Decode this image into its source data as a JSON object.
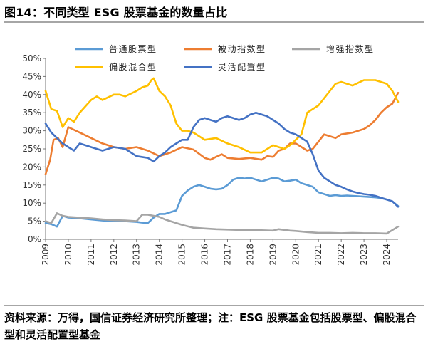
{
  "header": {
    "title": "图14：不同类型 ESG 股票基金的数量占比"
  },
  "footer": {
    "source": "资料来源：万得，国信证券经济研究所整理；注：ESG 股票基金包括股票型、偏股混合型和灵活配置型基金"
  },
  "chart_data": {
    "type": "line",
    "title": "图14：不同类型 ESG 股票基金的数量占比",
    "xlabel": "",
    "ylabel": "",
    "xlim": [
      2009.0,
      2024.5
    ],
    "ylim": [
      0,
      50
    ],
    "yticks": [
      0,
      5,
      10,
      15,
      20,
      25,
      30,
      35,
      40,
      45,
      50
    ],
    "ytick_labels": [
      "0%",
      "5%",
      "10%",
      "15%",
      "20%",
      "25%",
      "30%",
      "35%",
      "40%",
      "45%",
      "50%"
    ],
    "xticks": [
      2009,
      2010,
      2011,
      2012,
      2013,
      2014,
      2015,
      2016,
      2017,
      2018,
      2019,
      2020,
      2021,
      2022,
      2023,
      2024
    ],
    "xtick_labels": [
      "2009",
      "2010",
      "2011",
      "2012",
      "2013",
      "2014",
      "2015",
      "2016",
      "2017",
      "2018",
      "2019",
      "2020",
      "2021",
      "2022",
      "2023",
      "2024"
    ],
    "legend_position": "top",
    "grid": false,
    "series": [
      {
        "name": "普通股票型",
        "color": "#5b9bd5",
        "x": [
          2009.0,
          2009.25,
          2009.5,
          2009.75,
          2010.0,
          2010.5,
          2011.0,
          2011.5,
          2012.0,
          2012.5,
          2013.0,
          2013.25,
          2013.5,
          2013.75,
          2014.0,
          2014.25,
          2014.5,
          2014.75,
          2015.0,
          2015.25,
          2015.5,
          2015.75,
          2016.0,
          2016.25,
          2016.5,
          2016.75,
          2017.0,
          2017.25,
          2017.5,
          2017.75,
          2018.0,
          2018.25,
          2018.5,
          2018.75,
          2019.0,
          2019.25,
          2019.5,
          2019.75,
          2020.0,
          2020.25,
          2020.5,
          2020.75,
          2021.0,
          2021.25,
          2021.5,
          2021.75,
          2022.0,
          2022.25,
          2022.5,
          2022.75,
          2023.0,
          2023.25,
          2023.5,
          2023.75,
          2024.0,
          2024.25,
          2024.5
        ],
        "values": [
          4.5,
          4.2,
          3.5,
          6.5,
          6.0,
          5.8,
          5.5,
          5.2,
          5.0,
          5.0,
          4.8,
          4.6,
          4.5,
          6.0,
          7.0,
          7.0,
          7.5,
          8.0,
          12.0,
          13.5,
          14.5,
          15.0,
          14.5,
          14.0,
          13.8,
          14.0,
          15.0,
          16.5,
          17.0,
          16.8,
          17.0,
          16.5,
          16.0,
          16.5,
          17.0,
          16.8,
          16.0,
          16.2,
          16.5,
          15.5,
          15.0,
          14.5,
          13.0,
          12.5,
          12.0,
          12.2,
          12.0,
          12.1,
          12.0,
          11.9,
          11.8,
          11.7,
          11.6,
          11.4,
          11.0,
          10.5,
          9.2
        ]
      },
      {
        "name": "被动指数型",
        "color": "#ed7d31",
        "x": [
          2009.0,
          2009.2,
          2009.35,
          2009.55,
          2009.75,
          2010.0,
          2010.5,
          2011.0,
          2011.5,
          2012.0,
          2012.5,
          2013.0,
          2013.5,
          2014.0,
          2014.5,
          2015.0,
          2015.5,
          2016.0,
          2016.25,
          2016.5,
          2016.75,
          2017.0,
          2017.5,
          2018.0,
          2018.5,
          2018.75,
          2019.0,
          2019.25,
          2019.5,
          2019.75,
          2020.0,
          2020.5,
          2020.75,
          2021.0,
          2021.25,
          2021.5,
          2021.75,
          2022.0,
          2022.5,
          2022.75,
          2023.0,
          2023.25,
          2023.5,
          2023.75,
          2024.0,
          2024.25,
          2024.5
        ],
        "values": [
          18.0,
          22.0,
          27.5,
          28.0,
          25.5,
          31.0,
          29.5,
          28.0,
          26.5,
          25.5,
          25.0,
          25.5,
          24.5,
          23.0,
          24.0,
          25.5,
          24.8,
          22.5,
          22.0,
          22.8,
          23.5,
          22.5,
          22.2,
          22.5,
          22.0,
          23.0,
          22.8,
          24.5,
          25.0,
          26.5,
          26.5,
          24.5,
          25.0,
          27.0,
          29.0,
          28.5,
          28.0,
          29.0,
          29.5,
          30.0,
          30.5,
          31.5,
          33.0,
          35.0,
          36.5,
          37.5,
          40.5
        ]
      },
      {
        "name": "增强指数型",
        "color": "#a5a5a5",
        "x": [
          2009.0,
          2009.25,
          2009.5,
          2009.75,
          2010.0,
          2010.5,
          2011.0,
          2011.5,
          2012.0,
          2012.5,
          2013.0,
          2013.25,
          2013.5,
          2013.75,
          2014.0,
          2014.25,
          2014.5,
          2015.0,
          2015.5,
          2016.0,
          2016.5,
          2017.0,
          2017.5,
          2018.0,
          2018.5,
          2019.0,
          2019.25,
          2019.5,
          2019.75,
          2020.0,
          2020.5,
          2021.0,
          2021.5,
          2022.0,
          2022.5,
          2023.0,
          2023.5,
          2024.0,
          2024.5
        ],
        "values": [
          5.0,
          4.5,
          7.2,
          6.5,
          6.2,
          6.0,
          5.8,
          5.5,
          5.3,
          5.2,
          5.0,
          6.8,
          6.8,
          6.5,
          6.2,
          5.5,
          5.0,
          4.0,
          3.2,
          3.0,
          2.8,
          2.7,
          2.6,
          2.6,
          2.5,
          2.4,
          2.8,
          2.6,
          2.4,
          2.3,
          2.0,
          1.8,
          1.8,
          1.7,
          1.8,
          1.7,
          1.7,
          1.6,
          3.5
        ]
      },
      {
        "name": "偏股混合型",
        "color": "#ffc000",
        "x": [
          2009.0,
          2009.15,
          2009.25,
          2009.5,
          2009.75,
          2010.0,
          2010.25,
          2010.5,
          2011.0,
          2011.25,
          2011.5,
          2012.0,
          2012.25,
          2012.5,
          2013.0,
          2013.25,
          2013.5,
          2013.65,
          2013.75,
          2014.0,
          2014.25,
          2014.5,
          2014.75,
          2015.0,
          2015.25,
          2015.5,
          2016.0,
          2016.5,
          2017.0,
          2017.5,
          2018.0,
          2018.5,
          2019.0,
          2019.25,
          2019.5,
          2019.75,
          2020.0,
          2020.25,
          2020.5,
          2021.0,
          2021.5,
          2021.75,
          2022.0,
          2022.25,
          2022.5,
          2023.0,
          2023.5,
          2024.0,
          2024.25,
          2024.5
        ],
        "values": [
          41.0,
          38.0,
          36.0,
          35.5,
          31.0,
          33.5,
          32.5,
          35.0,
          38.5,
          39.5,
          38.5,
          40.0,
          40.0,
          39.5,
          41.0,
          42.0,
          42.5,
          44.0,
          44.5,
          41.0,
          39.5,
          37.0,
          32.0,
          30.0,
          30.0,
          29.5,
          27.5,
          28.0,
          26.5,
          25.5,
          24.0,
          24.0,
          26.0,
          25.5,
          25.0,
          26.0,
          27.5,
          29.0,
          35.0,
          37.0,
          41.0,
          43.0,
          43.5,
          43.0,
          42.5,
          44.0,
          44.0,
          43.0,
          41.0,
          38.0
        ]
      },
      {
        "name": "灵活配置型",
        "color": "#4472c4",
        "x": [
          2009.0,
          2009.25,
          2009.5,
          2009.75,
          2010.0,
          2010.25,
          2010.5,
          2011.0,
          2011.5,
          2012.0,
          2012.5,
          2013.0,
          2013.5,
          2013.75,
          2014.0,
          2014.25,
          2014.5,
          2014.75,
          2015.0,
          2015.25,
          2015.5,
          2015.75,
          2016.0,
          2016.25,
          2016.5,
          2016.75,
          2017.0,
          2017.25,
          2017.5,
          2017.75,
          2018.0,
          2018.25,
          2018.5,
          2018.75,
          2019.0,
          2019.25,
          2019.5,
          2019.75,
          2020.0,
          2020.25,
          2020.5,
          2020.75,
          2021.0,
          2021.25,
          2021.5,
          2021.75,
          2022.0,
          2022.25,
          2022.5,
          2022.75,
          2023.0,
          2023.25,
          2023.5,
          2023.75,
          2024.0,
          2024.25,
          2024.5
        ],
        "values": [
          32.0,
          29.5,
          28.0,
          26.5,
          25.5,
          24.5,
          26.5,
          25.5,
          24.5,
          25.5,
          25.0,
          23.0,
          22.5,
          21.5,
          23.0,
          24.0,
          25.5,
          26.5,
          27.5,
          27.5,
          31.0,
          33.0,
          33.5,
          33.0,
          32.5,
          33.5,
          34.0,
          33.5,
          33.0,
          33.5,
          34.5,
          35.0,
          34.5,
          34.0,
          33.0,
          32.0,
          30.5,
          29.5,
          29.0,
          28.0,
          27.0,
          23.5,
          19.0,
          17.0,
          16.0,
          15.0,
          14.5,
          13.8,
          13.2,
          12.8,
          12.5,
          12.3,
          12.0,
          11.5,
          11.0,
          10.5,
          9.0
        ]
      }
    ]
  }
}
